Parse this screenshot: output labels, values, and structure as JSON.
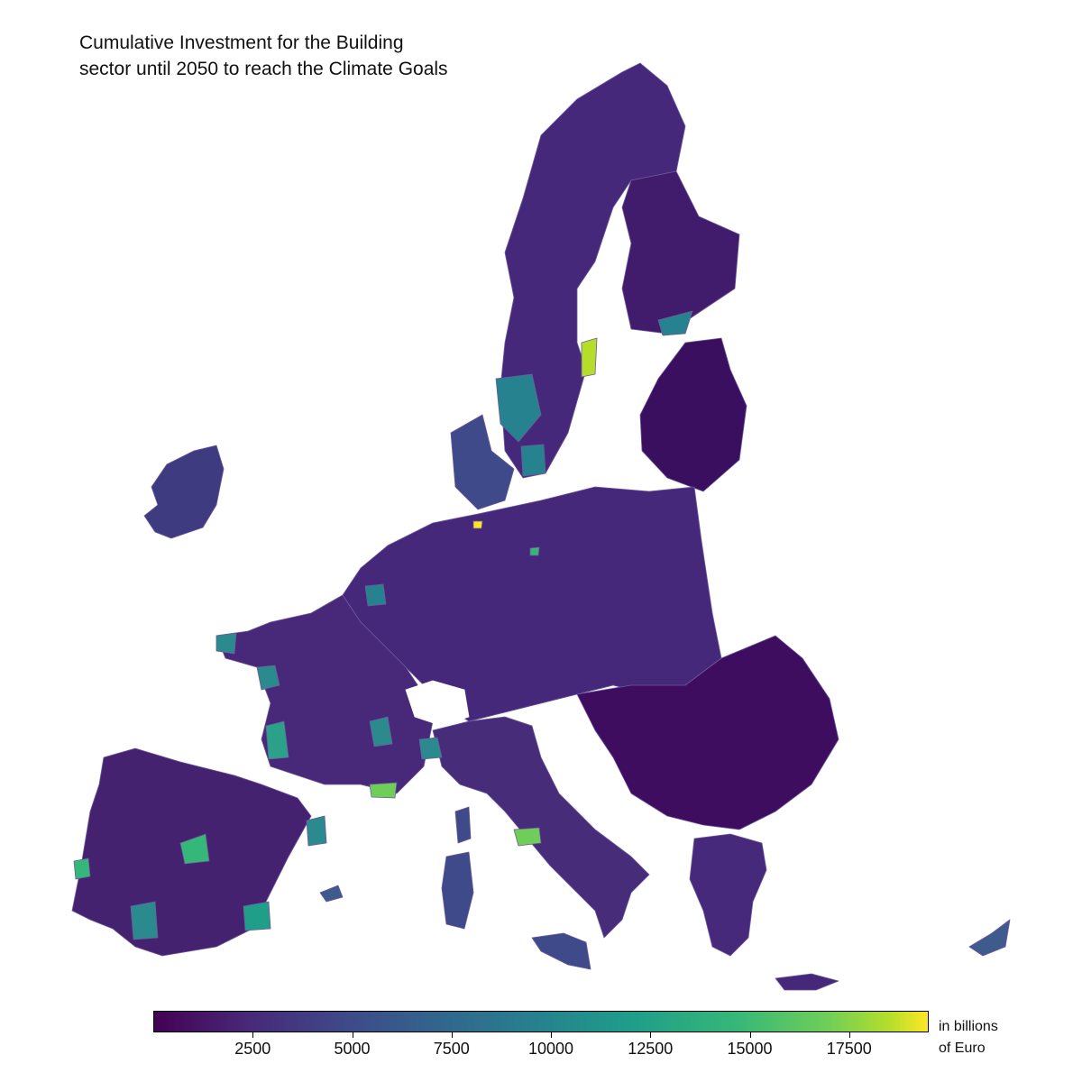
{
  "title": "Cumulative Investment for the Building sector until 2050 to reach the Climate Goals",
  "colorbar": {
    "unit_line1": "in billions",
    "unit_line2": "of Euro",
    "min": 0,
    "max": 19500,
    "ticks": [
      "2500",
      "5000",
      "7500",
      "10000",
      "12500",
      "15000",
      "17500"
    ],
    "tick_values": [
      2500,
      5000,
      7500,
      10000,
      12500,
      15000,
      17500
    ],
    "colors": [
      "#440154",
      "#482878",
      "#3e4a89",
      "#31688e",
      "#26828e",
      "#1f9e89",
      "#35b779",
      "#6ece58",
      "#b5de2b",
      "#fde725"
    ]
  },
  "map": {
    "base_color": "#46287a",
    "dark_color": "#3b0f5f",
    "border_color": "#6d5a9c"
  }
}
